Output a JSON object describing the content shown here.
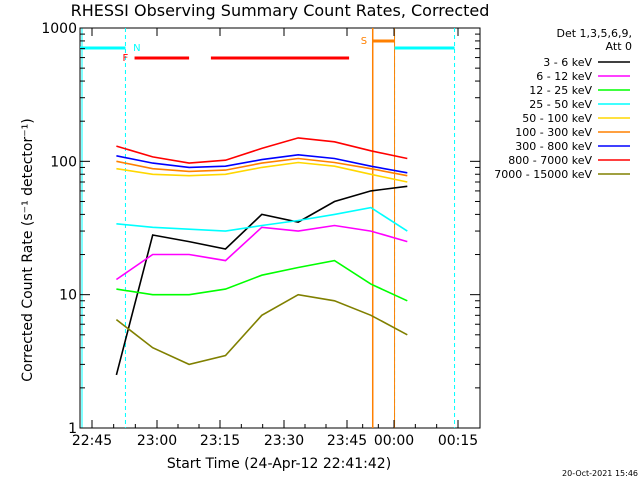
{
  "chart_data": {
    "type": "line",
    "title": "RHESSI Observing Summary Count Rates, Corrected",
    "xlabel": "Start Time (24-Apr-12 22:41:42)",
    "ylabel": "Corrected Count Rate (s⁻¹ detector⁻¹)",
    "yscale": "log",
    "ylim": [
      1,
      1000
    ],
    "xlim_minutes": [
      -4,
      18
    ],
    "x_ticks": [
      "22:45",
      "23:00",
      "23:15",
      "23:30",
      "23:45",
      "00:00",
      "00:15"
    ],
    "y_ticks": [
      "1",
      "10",
      "100",
      "1000"
    ],
    "grid": false,
    "legend_placement": "right",
    "legend_header": [
      "Det 1,3,5,6,9,",
      "Att 0"
    ],
    "series": [
      {
        "name": "3 - 6 keV",
        "color": "#000000",
        "x": [
          -2,
          0,
          2,
          4,
          6,
          8,
          10,
          12,
          14
        ],
        "values": [
          2.5,
          28,
          25,
          22,
          40,
          35,
          50,
          60,
          65
        ]
      },
      {
        "name": "6 - 12 keV",
        "color": "#ff00ff",
        "x": [
          -2,
          0,
          2,
          4,
          6,
          8,
          10,
          12,
          14
        ],
        "values": [
          13,
          20,
          20,
          18,
          32,
          30,
          33,
          30,
          25
        ]
      },
      {
        "name": "12 - 25 keV",
        "color": "#00ff00",
        "x": [
          -2,
          0,
          2,
          4,
          6,
          8,
          10,
          12,
          14
        ],
        "values": [
          11,
          10,
          10,
          11,
          14,
          16,
          18,
          12,
          9
        ]
      },
      {
        "name": "25 - 50 keV",
        "color": "#00ffff",
        "x": [
          -2,
          0,
          2,
          4,
          6,
          8,
          10,
          12,
          14
        ],
        "values": [
          34,
          32,
          31,
          30,
          33,
          36,
          40,
          45,
          30
        ]
      },
      {
        "name": "50 - 100 keV",
        "color": "#ffd700",
        "x": [
          -2,
          0,
          2,
          4,
          6,
          8,
          10,
          12,
          14
        ],
        "values": [
          88,
          80,
          78,
          80,
          90,
          98,
          92,
          80,
          70
        ]
      },
      {
        "name": "100 - 300 keV",
        "color": "#ff8000",
        "x": [
          -2,
          0,
          2,
          4,
          6,
          8,
          10,
          12,
          14
        ],
        "values": [
          100,
          88,
          84,
          86,
          97,
          105,
          98,
          88,
          78
        ]
      },
      {
        "name": "300 - 800 keV",
        "color": "#0000ff",
        "x": [
          -2,
          0,
          2,
          4,
          6,
          8,
          10,
          12,
          14
        ],
        "values": [
          110,
          97,
          90,
          92,
          103,
          112,
          105,
          92,
          82
        ]
      },
      {
        "name": "800 - 7000 keV",
        "color": "#ff0000",
        "x": [
          -2,
          0,
          2,
          4,
          6,
          8,
          10,
          12,
          14
        ],
        "values": [
          130,
          108,
          97,
          102,
          125,
          150,
          140,
          120,
          105
        ]
      },
      {
        "name": "7000 - 15000 keV",
        "color": "#808000",
        "x": [
          -2,
          0,
          2,
          4,
          6,
          8,
          10,
          12,
          14
        ],
        "values": [
          6.5,
          4,
          3,
          3.5,
          7,
          10,
          9,
          7,
          5
        ]
      }
    ],
    "flags": [
      {
        "label": "N",
        "color": "#00ffff"
      },
      {
        "label": "F",
        "color": "#ff0000"
      },
      {
        "label": "S",
        "color": "#ff8000"
      }
    ],
    "footer_date": "20-Oct-2021 15:46"
  }
}
